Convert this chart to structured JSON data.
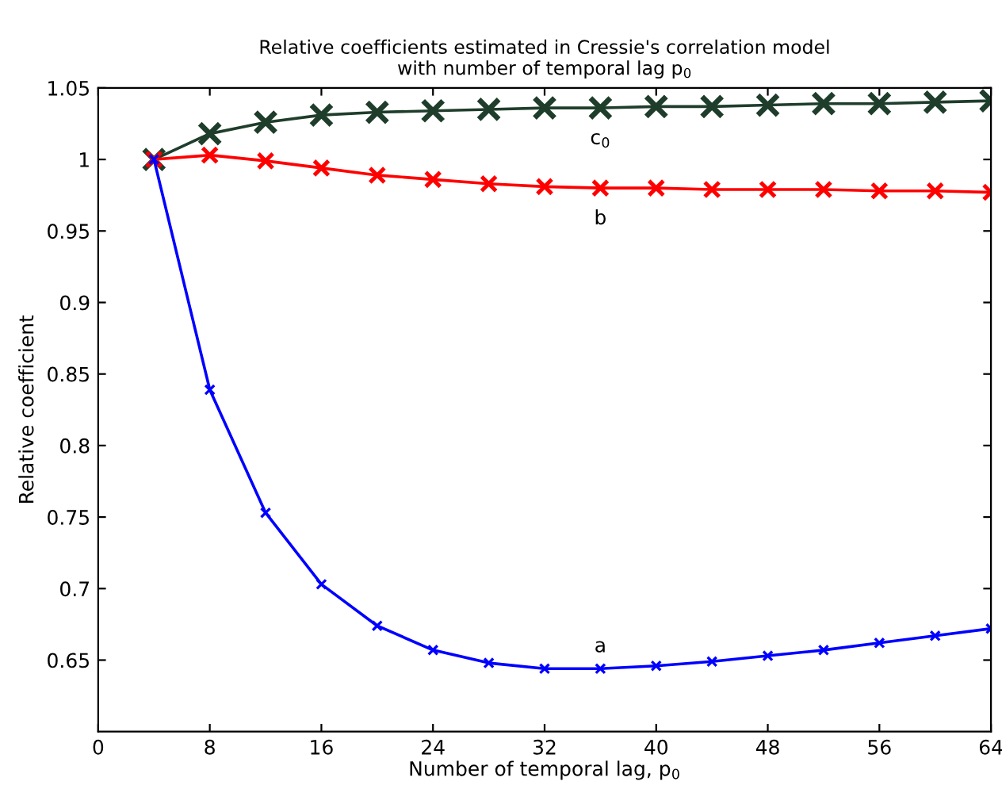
{
  "chart_data": {
    "type": "line",
    "title": "Relative coefficients estimated in Cressie's correlation model\nwith number of temporal lag p$_{0}$",
    "xlabel": "Number of temporal lag, p$_{0}$",
    "ylabel": "Relative coefficient",
    "x": [
      4,
      8,
      12,
      16,
      20,
      24,
      28,
      32,
      36,
      40,
      44,
      48,
      52,
      56,
      60,
      64
    ],
    "series": [
      {
        "name": "c$_{0}$",
        "color": "#1f3d2b",
        "values": [
          1,
          1.018,
          1.026,
          1.031,
          1.033,
          1.034,
          1.035,
          1.036,
          1.036,
          1.037,
          1.037,
          1.038,
          1.039,
          1.039,
          1.04,
          1.041
        ]
      },
      {
        "name": "b",
        "color": "#ff0000",
        "values": [
          1,
          1.003,
          0.999,
          0.994,
          0.989,
          0.986,
          0.983,
          0.981,
          0.98,
          0.98,
          0.979,
          0.979,
          0.979,
          0.978,
          0.978,
          0.977
        ]
      },
      {
        "name": "a",
        "color": "#0000ff",
        "values": [
          1,
          0.839,
          0.753,
          0.703,
          0.674,
          0.657,
          0.648,
          0.644,
          0.644,
          0.646,
          0.649,
          0.653,
          0.657,
          0.662,
          0.667,
          0.672
        ]
      }
    ],
    "xlim": [
      0,
      64
    ],
    "xticks": [
      0,
      8,
      16,
      24,
      32,
      40,
      48,
      56,
      64
    ],
    "ylim": [
      0.6,
      1.05
    ],
    "yticks": [
      0.65,
      0.7,
      0.75,
      0.8,
      0.85,
      0.9,
      0.95,
      1,
      1.05
    ],
    "marker": "cross",
    "line_style": "solid",
    "grid": false,
    "legend": false
  }
}
